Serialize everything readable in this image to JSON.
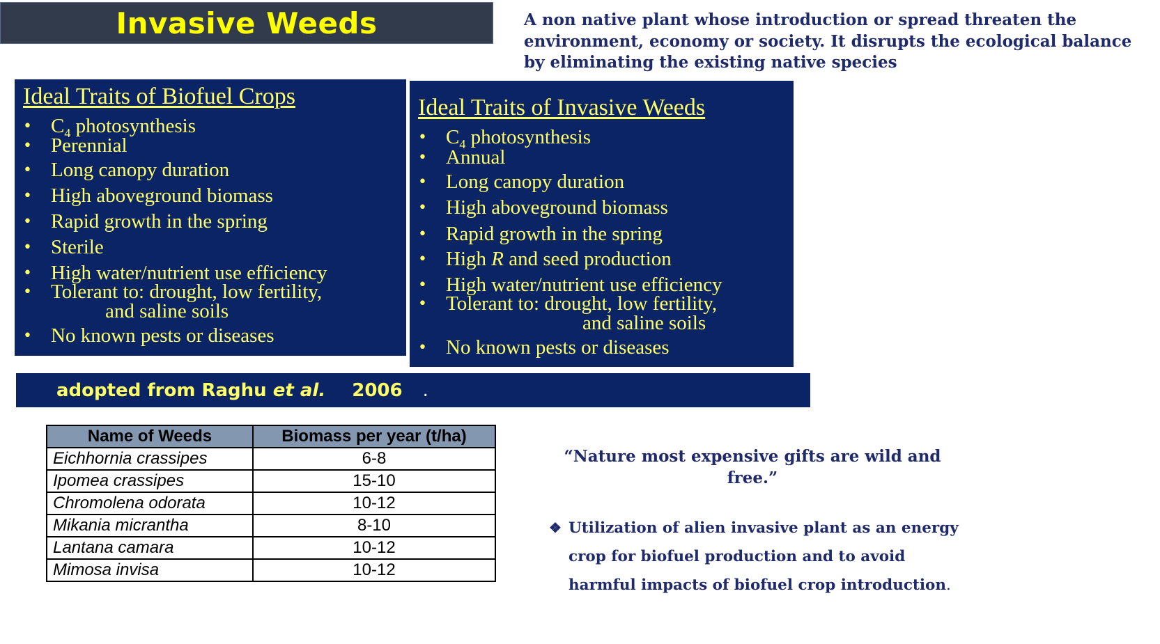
{
  "title": "Invasive Weeds",
  "definition": "A non native plant whose introduction or spread threaten the environment,  economy or society. It disrupts the ecological balance by eliminating the existing native species",
  "biofuel_traits": {
    "heading": "Ideal Traits of Biofuel Crops",
    "items": [
      {
        "pre": "C",
        "sub": "4",
        "post": " photosynthesis"
      },
      {
        "text": "Perennial"
      },
      {
        "text": "Long canopy duration"
      },
      {
        "text": "High aboveground biomass"
      },
      {
        "text": "Rapid growth in the spring"
      },
      {
        "text": "Sterile"
      },
      {
        "text": "High water/nutrient use efficiency"
      },
      {
        "text": "Tolerant to: drought, low fertility,",
        "cont": "and saline soils"
      },
      {
        "text": "No known pests or diseases"
      }
    ]
  },
  "weed_traits": {
    "heading": "Ideal Traits of Invasive Weeds",
    "items": [
      {
        "pre": "C",
        "sub": "4",
        "post": " photosynthesis"
      },
      {
        "text": "Annual"
      },
      {
        "text": "Long canopy duration"
      },
      {
        "text": "High aboveground biomass"
      },
      {
        "text": "Rapid growth in the spring"
      },
      {
        "pre": "High ",
        "ital": "R",
        "post": " and seed production"
      },
      {
        "text": "High water/nutrient use efficiency"
      },
      {
        "text": "Tolerant to: drought, low fertility,",
        "cont": "and saline soils"
      },
      {
        "text": "No known pests or diseases"
      }
    ]
  },
  "citation": {
    "pre": "adopted from Raghu ",
    "ital": "et al.",
    "post": " 2006",
    "end": "."
  },
  "table": {
    "headers": [
      "Name of Weeds",
      "Biomass per year (t/ha)"
    ],
    "rows": [
      [
        "Eichhornia crassipes",
        "6-8"
      ],
      [
        "Ipomea crassipes",
        "15-10"
      ],
      [
        "Chromolena odorata",
        "10-12"
      ],
      [
        "Mikania micrantha",
        "8-10"
      ],
      [
        "Lantana camara",
        "10-12"
      ],
      [
        "Mimosa invisa",
        "10-12"
      ]
    ]
  },
  "quote": "“Nature most expensive gifts are wild and free.”",
  "note": {
    "bullet": "❖",
    "line1": "Utilization of alien invasive plant as an energy",
    "line2": "crop for biofuel production and to avoid",
    "line3": "harmful impacts of biofuel crop introduction",
    "end": "."
  }
}
